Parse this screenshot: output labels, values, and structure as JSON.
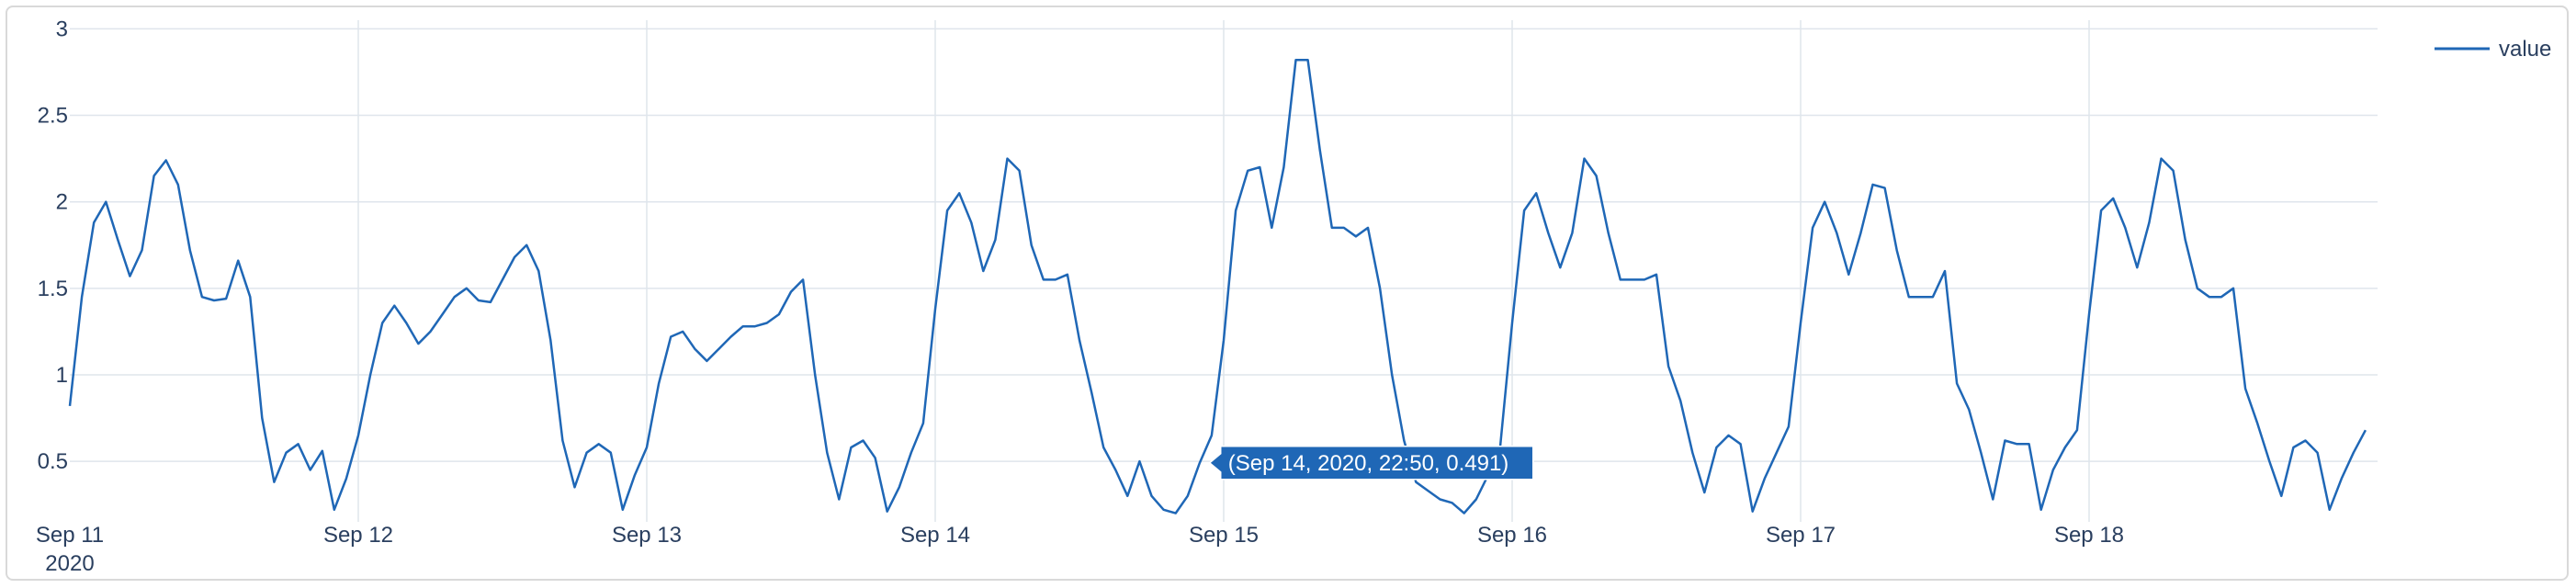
{
  "chart_data": {
    "type": "line",
    "x_axis_type": "date",
    "x_range": [
      "2020-09-11 00:00",
      "2020-09-19 00:00"
    ],
    "ylim": [
      0.15,
      3.05
    ],
    "y_ticks": [
      0.5,
      1,
      1.5,
      2,
      2.5,
      3
    ],
    "y_tick_labels": [
      "0.5",
      "1",
      "1.5",
      "2",
      "2.5",
      "3"
    ],
    "x_ticks": [
      "2020-09-11",
      "2020-09-12",
      "2020-09-13",
      "2020-09-14",
      "2020-09-15",
      "2020-09-16",
      "2020-09-17",
      "2020-09-18"
    ],
    "x_tick_labels": [
      "Sep 11",
      "Sep 12",
      "Sep 13",
      "Sep 14",
      "Sep 15",
      "Sep 16",
      "Sep 17",
      "Sep 18"
    ],
    "x_year_label": "2020",
    "grid": true,
    "legend_position": "top-right",
    "colors": {
      "line": "#1f67b6",
      "grid": "#dfe5ec",
      "tooltip_bg": "#1f67b6",
      "text": "#2a3f5f"
    },
    "tooltip": {
      "x": "2020-09-14 22:50",
      "y": 0.491,
      "text": "(Sep 14, 2020, 22:50, 0.491)"
    },
    "series": [
      {
        "name": "value",
        "x": [
          "2020-09-11 00:00",
          "2020-09-11 01:00",
          "2020-09-11 02:00",
          "2020-09-11 03:00",
          "2020-09-11 04:00",
          "2020-09-11 05:00",
          "2020-09-11 06:00",
          "2020-09-11 07:00",
          "2020-09-11 08:00",
          "2020-09-11 09:00",
          "2020-09-11 10:00",
          "2020-09-11 11:00",
          "2020-09-11 12:00",
          "2020-09-11 13:00",
          "2020-09-11 14:00",
          "2020-09-11 15:00",
          "2020-09-11 16:00",
          "2020-09-11 17:00",
          "2020-09-11 18:00",
          "2020-09-11 19:00",
          "2020-09-11 20:00",
          "2020-09-11 21:00",
          "2020-09-11 22:00",
          "2020-09-11 23:00",
          "2020-09-12 00:00",
          "2020-09-12 01:00",
          "2020-09-12 02:00",
          "2020-09-12 03:00",
          "2020-09-12 04:00",
          "2020-09-12 05:00",
          "2020-09-12 06:00",
          "2020-09-12 07:00",
          "2020-09-12 08:00",
          "2020-09-12 09:00",
          "2020-09-12 10:00",
          "2020-09-12 11:00",
          "2020-09-12 12:00",
          "2020-09-12 13:00",
          "2020-09-12 14:00",
          "2020-09-12 15:00",
          "2020-09-12 16:00",
          "2020-09-12 17:00",
          "2020-09-12 18:00",
          "2020-09-12 19:00",
          "2020-09-12 20:00",
          "2020-09-12 21:00",
          "2020-09-12 22:00",
          "2020-09-12 23:00",
          "2020-09-13 00:00",
          "2020-09-13 01:00",
          "2020-09-13 02:00",
          "2020-09-13 03:00",
          "2020-09-13 04:00",
          "2020-09-13 05:00",
          "2020-09-13 06:00",
          "2020-09-13 07:00",
          "2020-09-13 08:00",
          "2020-09-13 09:00",
          "2020-09-13 10:00",
          "2020-09-13 11:00",
          "2020-09-13 12:00",
          "2020-09-13 13:00",
          "2020-09-13 14:00",
          "2020-09-13 15:00",
          "2020-09-13 16:00",
          "2020-09-13 17:00",
          "2020-09-13 18:00",
          "2020-09-13 19:00",
          "2020-09-13 20:00",
          "2020-09-13 21:00",
          "2020-09-13 22:00",
          "2020-09-13 23:00",
          "2020-09-14 00:00",
          "2020-09-14 01:00",
          "2020-09-14 02:00",
          "2020-09-14 03:00",
          "2020-09-14 04:00",
          "2020-09-14 05:00",
          "2020-09-14 06:00",
          "2020-09-14 07:00",
          "2020-09-14 08:00",
          "2020-09-14 09:00",
          "2020-09-14 10:00",
          "2020-09-14 11:00",
          "2020-09-14 12:00",
          "2020-09-14 13:00",
          "2020-09-14 14:00",
          "2020-09-14 15:00",
          "2020-09-14 16:00",
          "2020-09-14 17:00",
          "2020-09-14 18:00",
          "2020-09-14 19:00",
          "2020-09-14 20:00",
          "2020-09-14 21:00",
          "2020-09-14 22:00",
          "2020-09-14 23:00",
          "2020-09-15 00:00",
          "2020-09-15 01:00",
          "2020-09-15 02:00",
          "2020-09-15 03:00",
          "2020-09-15 04:00",
          "2020-09-15 05:00",
          "2020-09-15 06:00",
          "2020-09-15 07:00",
          "2020-09-15 08:00",
          "2020-09-15 09:00",
          "2020-09-15 10:00",
          "2020-09-15 11:00",
          "2020-09-15 12:00",
          "2020-09-15 13:00",
          "2020-09-15 14:00",
          "2020-09-15 15:00",
          "2020-09-15 16:00",
          "2020-09-15 17:00",
          "2020-09-15 18:00",
          "2020-09-15 19:00",
          "2020-09-15 20:00",
          "2020-09-15 21:00",
          "2020-09-15 22:00",
          "2020-09-15 23:00",
          "2020-09-16 00:00",
          "2020-09-16 01:00",
          "2020-09-16 02:00",
          "2020-09-16 03:00",
          "2020-09-16 04:00",
          "2020-09-16 05:00",
          "2020-09-16 06:00",
          "2020-09-16 07:00",
          "2020-09-16 08:00",
          "2020-09-16 09:00",
          "2020-09-16 10:00",
          "2020-09-16 11:00",
          "2020-09-16 12:00",
          "2020-09-16 13:00",
          "2020-09-16 14:00",
          "2020-09-16 15:00",
          "2020-09-16 16:00",
          "2020-09-16 17:00",
          "2020-09-16 18:00",
          "2020-09-16 19:00",
          "2020-09-16 20:00",
          "2020-09-16 21:00",
          "2020-09-16 22:00",
          "2020-09-16 23:00",
          "2020-09-17 00:00",
          "2020-09-17 01:00",
          "2020-09-17 02:00",
          "2020-09-17 03:00",
          "2020-09-17 04:00",
          "2020-09-17 05:00",
          "2020-09-17 06:00",
          "2020-09-17 07:00",
          "2020-09-17 08:00",
          "2020-09-17 09:00",
          "2020-09-17 10:00",
          "2020-09-17 11:00",
          "2020-09-17 12:00",
          "2020-09-17 13:00",
          "2020-09-17 14:00",
          "2020-09-17 15:00",
          "2020-09-17 16:00",
          "2020-09-17 17:00",
          "2020-09-17 18:00",
          "2020-09-17 19:00",
          "2020-09-17 20:00",
          "2020-09-17 21:00",
          "2020-09-17 22:00",
          "2020-09-17 23:00",
          "2020-09-18 00:00",
          "2020-09-18 01:00",
          "2020-09-18 02:00",
          "2020-09-18 03:00",
          "2020-09-18 04:00",
          "2020-09-18 05:00",
          "2020-09-18 06:00",
          "2020-09-18 07:00",
          "2020-09-18 08:00",
          "2020-09-18 09:00",
          "2020-09-18 10:00",
          "2020-09-18 11:00",
          "2020-09-18 12:00",
          "2020-09-18 13:00",
          "2020-09-18 14:00",
          "2020-09-18 15:00",
          "2020-09-18 16:00",
          "2020-09-18 17:00",
          "2020-09-18 18:00",
          "2020-09-18 19:00",
          "2020-09-18 20:00",
          "2020-09-18 21:00",
          "2020-09-18 22:00",
          "2020-09-18 23:00"
        ],
        "values": [
          0.82,
          1.45,
          1.88,
          2.0,
          1.78,
          1.57,
          1.72,
          2.15,
          2.24,
          2.1,
          1.72,
          1.45,
          1.43,
          1.44,
          1.66,
          1.45,
          0.75,
          0.38,
          0.55,
          0.6,
          0.45,
          0.56,
          0.22,
          0.4,
          0.65,
          1.0,
          1.3,
          1.4,
          1.3,
          1.18,
          1.25,
          1.35,
          1.45,
          1.5,
          1.43,
          1.42,
          1.55,
          1.68,
          1.75,
          1.6,
          1.2,
          0.62,
          0.35,
          0.55,
          0.6,
          0.55,
          0.22,
          0.42,
          0.58,
          0.95,
          1.22,
          1.25,
          1.15,
          1.08,
          1.15,
          1.22,
          1.28,
          1.28,
          1.3,
          1.35,
          1.48,
          1.55,
          1.0,
          0.55,
          0.28,
          0.58,
          0.62,
          0.52,
          0.21,
          0.35,
          0.55,
          0.72,
          1.38,
          1.95,
          2.05,
          1.88,
          1.6,
          1.78,
          2.25,
          2.18,
          1.75,
          1.55,
          1.55,
          1.58,
          1.2,
          0.9,
          0.58,
          0.45,
          0.3,
          0.5,
          0.3,
          0.22,
          0.2,
          0.3,
          0.49,
          0.65,
          1.2,
          1.95,
          2.18,
          2.2,
          1.85,
          2.2,
          2.82,
          2.82,
          2.3,
          1.85,
          1.85,
          1.8,
          1.85,
          1.5,
          1.0,
          0.62,
          0.38,
          0.33,
          0.28,
          0.26,
          0.2,
          0.28,
          0.42,
          0.58,
          1.3,
          1.95,
          2.05,
          1.82,
          1.62,
          1.82,
          2.25,
          2.15,
          1.82,
          1.55,
          1.55,
          1.55,
          1.58,
          1.05,
          0.85,
          0.55,
          0.32,
          0.58,
          0.65,
          0.6,
          0.21,
          0.4,
          0.55,
          0.7,
          1.3,
          1.85,
          2.0,
          1.82,
          1.58,
          1.82,
          2.1,
          2.08,
          1.72,
          1.45,
          1.45,
          1.45,
          1.6,
          0.95,
          0.8,
          0.55,
          0.28,
          0.62,
          0.6,
          0.6,
          0.22,
          0.45,
          0.58,
          0.68,
          1.35,
          1.95,
          2.02,
          1.85,
          1.62,
          1.88,
          2.25,
          2.18,
          1.78,
          1.5,
          1.45,
          1.45,
          1.5,
          0.92,
          0.72,
          0.5,
          0.3,
          0.58,
          0.62,
          0.55,
          0.22,
          0.4,
          0.55,
          0.68
        ]
      }
    ]
  }
}
